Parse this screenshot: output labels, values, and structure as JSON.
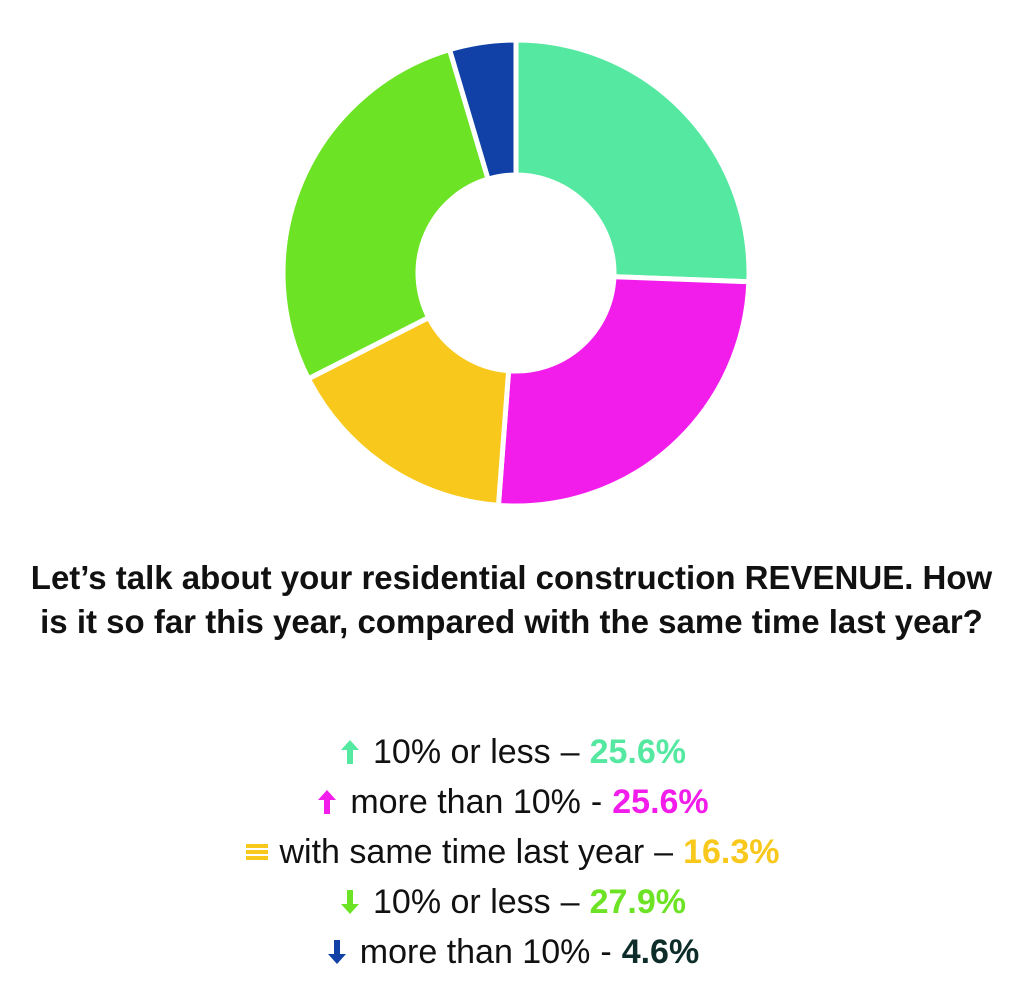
{
  "chart_data": {
    "type": "pie",
    "donut": true,
    "title": "Let’s talk about your residential construction REVENUE. How is it so far this year, compared with the same time last year?",
    "slices": [
      {
        "label": "10% or less",
        "value": 25.6,
        "value_text": "25.6%",
        "separator": "–",
        "color": "#54E8A0",
        "value_color": "#54E8A0",
        "icon": "arrow-up-icon"
      },
      {
        "label": "more than 10%",
        "value": 25.6,
        "value_text": "25.6%",
        "separator": "-",
        "color": "#F21DEB",
        "value_color": "#F21DEB",
        "icon": "arrow-up-icon"
      },
      {
        "label": "with same time last year",
        "value": 16.3,
        "value_text": "16.3%",
        "separator": "–",
        "color": "#F8C81C",
        "value_color": "#F8C81C",
        "icon": "equal-bars-icon"
      },
      {
        "label": "10% or less",
        "value": 27.9,
        "value_text": "27.9%",
        "separator": "–",
        "color": "#6CE324",
        "value_color": "#6CE324",
        "icon": "arrow-down-icon"
      },
      {
        "label": "more than 10%",
        "value": 4.6,
        "value_text": "4.6%",
        "separator": "-",
        "color": "#1141A6",
        "value_color": "#0E2D2A",
        "icon": "arrow-down-icon"
      }
    ],
    "legend_position": "bottom"
  }
}
